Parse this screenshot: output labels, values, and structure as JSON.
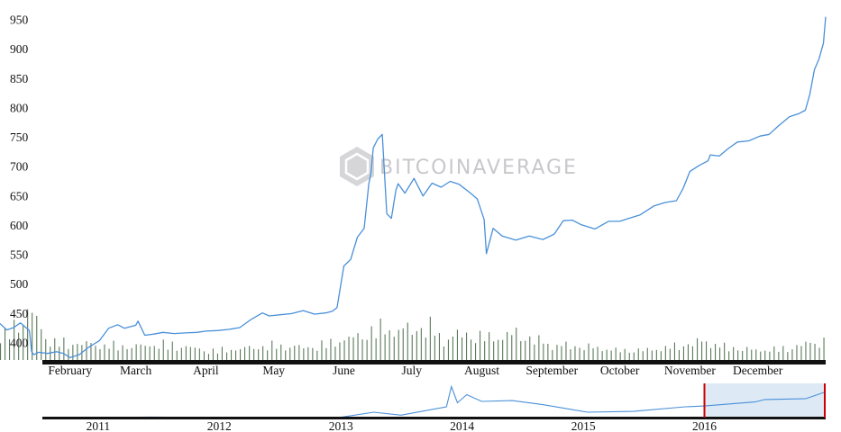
{
  "brand": {
    "logo_text": "BITCOINAVERAGE",
    "color": "#c8c8cc"
  },
  "colors": {
    "line": "#4a90d9",
    "volume": "#5a7a5a",
    "axis": "#111111",
    "navigator_fill": "#dde9f5",
    "handle": "#cc0000"
  },
  "chart_data": [
    {
      "type": "line",
      "title": "",
      "xlabel": "",
      "ylabel": "",
      "ylim": [
        390,
        965
      ],
      "x_range": [
        "2016-01-01",
        "2016-12-31"
      ],
      "grid": false,
      "yticks": [
        400,
        450,
        500,
        550,
        600,
        650,
        700,
        750,
        800,
        850,
        900,
        950
      ],
      "xticks": [
        {
          "label": "February",
          "date": "2016-02-01"
        },
        {
          "label": "March",
          "date": "2016-03-01"
        },
        {
          "label": "April",
          "date": "2016-04-01"
        },
        {
          "label": "May",
          "date": "2016-05-01"
        },
        {
          "label": "June",
          "date": "2016-06-01"
        },
        {
          "label": "July",
          "date": "2016-07-01"
        },
        {
          "label": "August",
          "date": "2016-08-01"
        },
        {
          "label": "September",
          "date": "2016-09-01"
        },
        {
          "label": "October",
          "date": "2016-10-01"
        },
        {
          "label": "November",
          "date": "2016-11-01"
        },
        {
          "label": "December",
          "date": "2016-12-01"
        }
      ],
      "series": [
        {
          "x": [
            "2016-01-01",
            "2016-01-04",
            "2016-01-07",
            "2016-01-10",
            "2016-01-14",
            "2016-01-15",
            "2016-01-16",
            "2016-01-18",
            "2016-01-22",
            "2016-01-26",
            "2016-01-29",
            "2016-02-01",
            "2016-02-05",
            "2016-02-09",
            "2016-02-14",
            "2016-02-18",
            "2016-02-22",
            "2016-02-25",
            "2016-03-01",
            "2016-03-02",
            "2016-03-05",
            "2016-03-09",
            "2016-03-13",
            "2016-03-18",
            "2016-03-23",
            "2016-03-28",
            "2016-04-01",
            "2016-04-06",
            "2016-04-11",
            "2016-04-16",
            "2016-04-21",
            "2016-04-26",
            "2016-04-29",
            "2016-05-04",
            "2016-05-09",
            "2016-05-14",
            "2016-05-19",
            "2016-05-24",
            "2016-05-27",
            "2016-05-29",
            "2016-06-01",
            "2016-06-04",
            "2016-06-07",
            "2016-06-10",
            "2016-06-12",
            "2016-06-13",
            "2016-06-14",
            "2016-06-16",
            "2016-06-18",
            "2016-06-20",
            "2016-06-22",
            "2016-06-24",
            "2016-06-25",
            "2016-06-28",
            "2016-07-02",
            "2016-07-06",
            "2016-07-10",
            "2016-07-14",
            "2016-07-18",
            "2016-07-22",
            "2016-07-27",
            "2016-07-30",
            "2016-08-02",
            "2016-08-03",
            "2016-08-06",
            "2016-08-10",
            "2016-08-16",
            "2016-08-22",
            "2016-08-28",
            "2016-09-02",
            "2016-09-06",
            "2016-09-10",
            "2016-09-14",
            "2016-09-20",
            "2016-09-26",
            "2016-10-01",
            "2016-10-05",
            "2016-10-10",
            "2016-10-16",
            "2016-10-21",
            "2016-10-26",
            "2016-10-29",
            "2016-11-01",
            "2016-11-05",
            "2016-11-09",
            "2016-11-10",
            "2016-11-14",
            "2016-11-18",
            "2016-11-22",
            "2016-11-27",
            "2016-12-02",
            "2016-12-06",
            "2016-12-10",
            "2016-12-15",
            "2016-12-19",
            "2016-12-22",
            "2016-12-24",
            "2016-12-26",
            "2016-12-28",
            "2016-12-30",
            "2016-12-31"
          ],
          "y": [
            433,
            422,
            426,
            434,
            421,
            385,
            380,
            384,
            382,
            385,
            382,
            375,
            380,
            392,
            404,
            425,
            431,
            425,
            430,
            437,
            413,
            415,
            418,
            416,
            417,
            418,
            420,
            421,
            423,
            426,
            440,
            451,
            446,
            448,
            450,
            455,
            449,
            451,
            454,
            460,
            531,
            542,
            580,
            595,
            670,
            690,
            732,
            747,
            755,
            620,
            612,
            660,
            671,
            655,
            680,
            650,
            672,
            665,
            675,
            670,
            655,
            645,
            610,
            552,
            595,
            582,
            575,
            582,
            576,
            585,
            608,
            609,
            601,
            594,
            607,
            607,
            612,
            618,
            633,
            639,
            642,
            663,
            692,
            702,
            710,
            720,
            718,
            731,
            742,
            744,
            752,
            755,
            769,
            785,
            790,
            796,
            823,
            865,
            883,
            910,
            955
          ]
        }
      ],
      "volume": {
        "ylim": [
          0,
          100
        ],
        "x": [
          "2016-01-01",
          "2016-01-08",
          "2016-01-15",
          "2016-01-22",
          "2016-02-01",
          "2016-02-15",
          "2016-03-01",
          "2016-03-15",
          "2016-04-01",
          "2016-04-15",
          "2016-05-01",
          "2016-05-15",
          "2016-06-01",
          "2016-06-08",
          "2016-06-15",
          "2016-06-22",
          "2016-07-01",
          "2016-07-08",
          "2016-07-15",
          "2016-07-22",
          "2016-08-01",
          "2016-08-08",
          "2016-08-15",
          "2016-09-01",
          "2016-09-15",
          "2016-10-01",
          "2016-10-15",
          "2016-11-01",
          "2016-11-08",
          "2016-11-15",
          "2016-12-01",
          "2016-12-15",
          "2016-12-31"
        ],
        "values": [
          30,
          55,
          70,
          28,
          25,
          22,
          20,
          24,
          14,
          16,
          22,
          18,
          30,
          35,
          48,
          44,
          45,
          52,
          30,
          38,
          35,
          32,
          40,
          22,
          20,
          14,
          15,
          24,
          28,
          20,
          14,
          18,
          30
        ]
      }
    },
    {
      "type": "line",
      "title": "",
      "xlabel": "",
      "ylabel": "",
      "x_range": [
        "2010-07-17",
        "2016-12-31"
      ],
      "grid": false,
      "selected_range": [
        "2016-01-01",
        "2016-12-31"
      ],
      "xticks": [
        {
          "label": "2011",
          "date": "2011-01-01"
        },
        {
          "label": "2012",
          "date": "2012-01-01"
        },
        {
          "label": "2013",
          "date": "2013-01-01"
        },
        {
          "label": "2014",
          "date": "2014-01-01"
        },
        {
          "label": "2015",
          "date": "2015-01-01"
        },
        {
          "label": "2016",
          "date": "2016-01-01"
        }
      ],
      "series": [
        {
          "x": [
            "2010-07-17",
            "2011-01-01",
            "2011-06-08",
            "2012-01-01",
            "2012-06-01",
            "2013-01-01",
            "2013-04-10",
            "2013-07-01",
            "2013-11-15",
            "2013-11-30",
            "2013-12-18",
            "2014-01-15",
            "2014-03-01",
            "2014-06-01",
            "2014-09-01",
            "2015-01-14",
            "2015-06-01",
            "2015-11-04",
            "2016-01-01",
            "2016-06-01",
            "2016-07-01",
            "2016-11-01",
            "2016-12-31"
          ],
          "y": [
            0,
            1,
            20,
            5,
            7,
            13,
            200,
            90,
            400,
            1150,
            550,
            850,
            600,
            630,
            480,
            200,
            230,
            400,
            430,
            580,
            670,
            700,
            955
          ]
        }
      ]
    }
  ]
}
